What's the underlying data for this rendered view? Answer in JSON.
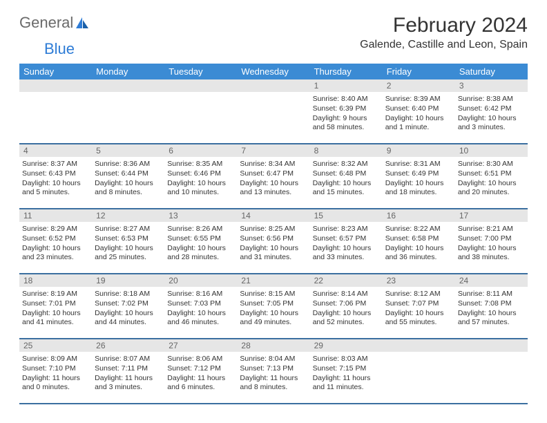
{
  "logo": {
    "text_general": "General",
    "text_blue": "Blue"
  },
  "title": "February 2024",
  "location": "Galende, Castille and Leon, Spain",
  "colors": {
    "header_bg": "#3b8bd4",
    "header_text": "#ffffff",
    "daynum_bg": "#e6e6e6",
    "daynum_text": "#666666",
    "rule": "#3b6fa0",
    "logo_general": "#6a6a6a",
    "logo_blue": "#2e7cd6"
  },
  "day_headers": [
    "Sunday",
    "Monday",
    "Tuesday",
    "Wednesday",
    "Thursday",
    "Friday",
    "Saturday"
  ],
  "weeks": [
    [
      {
        "day": "",
        "sunrise": "",
        "sunset": "",
        "daylight": ""
      },
      {
        "day": "",
        "sunrise": "",
        "sunset": "",
        "daylight": ""
      },
      {
        "day": "",
        "sunrise": "",
        "sunset": "",
        "daylight": ""
      },
      {
        "day": "",
        "sunrise": "",
        "sunset": "",
        "daylight": ""
      },
      {
        "day": "1",
        "sunrise": "Sunrise: 8:40 AM",
        "sunset": "Sunset: 6:39 PM",
        "daylight": "Daylight: 9 hours and 58 minutes."
      },
      {
        "day": "2",
        "sunrise": "Sunrise: 8:39 AM",
        "sunset": "Sunset: 6:40 PM",
        "daylight": "Daylight: 10 hours and 1 minute."
      },
      {
        "day": "3",
        "sunrise": "Sunrise: 8:38 AM",
        "sunset": "Sunset: 6:42 PM",
        "daylight": "Daylight: 10 hours and 3 minutes."
      }
    ],
    [
      {
        "day": "4",
        "sunrise": "Sunrise: 8:37 AM",
        "sunset": "Sunset: 6:43 PM",
        "daylight": "Daylight: 10 hours and 5 minutes."
      },
      {
        "day": "5",
        "sunrise": "Sunrise: 8:36 AM",
        "sunset": "Sunset: 6:44 PM",
        "daylight": "Daylight: 10 hours and 8 minutes."
      },
      {
        "day": "6",
        "sunrise": "Sunrise: 8:35 AM",
        "sunset": "Sunset: 6:46 PM",
        "daylight": "Daylight: 10 hours and 10 minutes."
      },
      {
        "day": "7",
        "sunrise": "Sunrise: 8:34 AM",
        "sunset": "Sunset: 6:47 PM",
        "daylight": "Daylight: 10 hours and 13 minutes."
      },
      {
        "day": "8",
        "sunrise": "Sunrise: 8:32 AM",
        "sunset": "Sunset: 6:48 PM",
        "daylight": "Daylight: 10 hours and 15 minutes."
      },
      {
        "day": "9",
        "sunrise": "Sunrise: 8:31 AM",
        "sunset": "Sunset: 6:49 PM",
        "daylight": "Daylight: 10 hours and 18 minutes."
      },
      {
        "day": "10",
        "sunrise": "Sunrise: 8:30 AM",
        "sunset": "Sunset: 6:51 PM",
        "daylight": "Daylight: 10 hours and 20 minutes."
      }
    ],
    [
      {
        "day": "11",
        "sunrise": "Sunrise: 8:29 AM",
        "sunset": "Sunset: 6:52 PM",
        "daylight": "Daylight: 10 hours and 23 minutes."
      },
      {
        "day": "12",
        "sunrise": "Sunrise: 8:27 AM",
        "sunset": "Sunset: 6:53 PM",
        "daylight": "Daylight: 10 hours and 25 minutes."
      },
      {
        "day": "13",
        "sunrise": "Sunrise: 8:26 AM",
        "sunset": "Sunset: 6:55 PM",
        "daylight": "Daylight: 10 hours and 28 minutes."
      },
      {
        "day": "14",
        "sunrise": "Sunrise: 8:25 AM",
        "sunset": "Sunset: 6:56 PM",
        "daylight": "Daylight: 10 hours and 31 minutes."
      },
      {
        "day": "15",
        "sunrise": "Sunrise: 8:23 AM",
        "sunset": "Sunset: 6:57 PM",
        "daylight": "Daylight: 10 hours and 33 minutes."
      },
      {
        "day": "16",
        "sunrise": "Sunrise: 8:22 AM",
        "sunset": "Sunset: 6:58 PM",
        "daylight": "Daylight: 10 hours and 36 minutes."
      },
      {
        "day": "17",
        "sunrise": "Sunrise: 8:21 AM",
        "sunset": "Sunset: 7:00 PM",
        "daylight": "Daylight: 10 hours and 38 minutes."
      }
    ],
    [
      {
        "day": "18",
        "sunrise": "Sunrise: 8:19 AM",
        "sunset": "Sunset: 7:01 PM",
        "daylight": "Daylight: 10 hours and 41 minutes."
      },
      {
        "day": "19",
        "sunrise": "Sunrise: 8:18 AM",
        "sunset": "Sunset: 7:02 PM",
        "daylight": "Daylight: 10 hours and 44 minutes."
      },
      {
        "day": "20",
        "sunrise": "Sunrise: 8:16 AM",
        "sunset": "Sunset: 7:03 PM",
        "daylight": "Daylight: 10 hours and 46 minutes."
      },
      {
        "day": "21",
        "sunrise": "Sunrise: 8:15 AM",
        "sunset": "Sunset: 7:05 PM",
        "daylight": "Daylight: 10 hours and 49 minutes."
      },
      {
        "day": "22",
        "sunrise": "Sunrise: 8:14 AM",
        "sunset": "Sunset: 7:06 PM",
        "daylight": "Daylight: 10 hours and 52 minutes."
      },
      {
        "day": "23",
        "sunrise": "Sunrise: 8:12 AM",
        "sunset": "Sunset: 7:07 PM",
        "daylight": "Daylight: 10 hours and 55 minutes."
      },
      {
        "day": "24",
        "sunrise": "Sunrise: 8:11 AM",
        "sunset": "Sunset: 7:08 PM",
        "daylight": "Daylight: 10 hours and 57 minutes."
      }
    ],
    [
      {
        "day": "25",
        "sunrise": "Sunrise: 8:09 AM",
        "sunset": "Sunset: 7:10 PM",
        "daylight": "Daylight: 11 hours and 0 minutes."
      },
      {
        "day": "26",
        "sunrise": "Sunrise: 8:07 AM",
        "sunset": "Sunset: 7:11 PM",
        "daylight": "Daylight: 11 hours and 3 minutes."
      },
      {
        "day": "27",
        "sunrise": "Sunrise: 8:06 AM",
        "sunset": "Sunset: 7:12 PM",
        "daylight": "Daylight: 11 hours and 6 minutes."
      },
      {
        "day": "28",
        "sunrise": "Sunrise: 8:04 AM",
        "sunset": "Sunset: 7:13 PM",
        "daylight": "Daylight: 11 hours and 8 minutes."
      },
      {
        "day": "29",
        "sunrise": "Sunrise: 8:03 AM",
        "sunset": "Sunset: 7:15 PM",
        "daylight": "Daylight: 11 hours and 11 minutes."
      },
      {
        "day": "",
        "sunrise": "",
        "sunset": "",
        "daylight": ""
      },
      {
        "day": "",
        "sunrise": "",
        "sunset": "",
        "daylight": ""
      }
    ]
  ]
}
